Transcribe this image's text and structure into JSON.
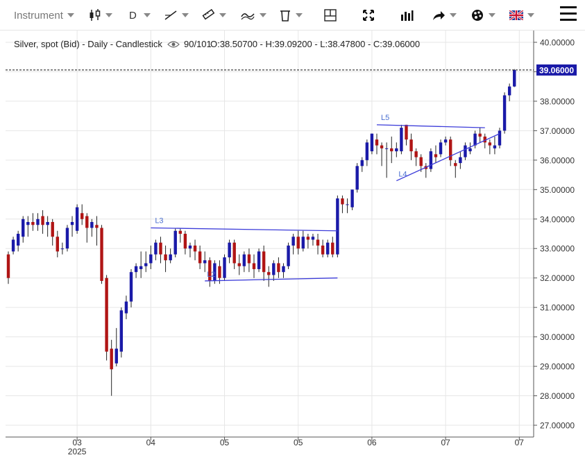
{
  "toolbar": {
    "instrument_label": "Instrument",
    "period_label": "D",
    "icons": [
      "candlestick-icon",
      "draw-line-icon",
      "ruler-icon",
      "indicator-icon",
      "trash-icon",
      "crosshair-box-icon",
      "fullscreen-icon",
      "volume-bars-icon",
      "share-icon",
      "palette-icon",
      "uk-flag-icon",
      "hamburger-menu-icon"
    ]
  },
  "header": {
    "instrument": "Silver, spot (Bid) - Daily - Candlestick",
    "bars": "90/101",
    "ohlc": "O:38.50700 - H:39.09200 - L:38.47800 - C:39.06000"
  },
  "colors": {
    "up": "#1a1aa8",
    "down": "#b01515",
    "drawing": "#3b3bd9",
    "grid": "#e6e6e6",
    "axis_text": "#333333",
    "price_tag_bg": "#1a1aa8"
  },
  "chart_data": {
    "type": "candlestick",
    "title": "Silver, spot (Bid) - Daily - Candlestick",
    "ylim": [
      26.6,
      40.4
    ],
    "y_ticks": [
      "40.00000",
      "39.00000",
      "38.00000",
      "37.00000",
      "36.00000",
      "35.00000",
      "34.00000",
      "33.00000",
      "32.00000",
      "31.00000",
      "30.00000",
      "29.00000",
      "28.00000",
      "27.00000"
    ],
    "x_ticks": [
      {
        "label": "03",
        "sublabel": "2025",
        "index": 14
      },
      {
        "label": "04",
        "sublabel": "",
        "index": 29
      },
      {
        "label": "05",
        "sublabel": "",
        "index": 44
      },
      {
        "label": "05",
        "sublabel": "",
        "index": 59
      },
      {
        "label": "06",
        "sublabel": "",
        "index": 74
      },
      {
        "label": "07",
        "sublabel": "",
        "index": 89
      },
      {
        "label": "07",
        "sublabel": "",
        "index": 104
      }
    ],
    "last_price": {
      "value": 39.06,
      "label": "39.06000"
    },
    "candles": [
      [
        32.8,
        32.0,
        32.9,
        31.8
      ],
      [
        32.9,
        33.3,
        33.4,
        32.8
      ],
      [
        33.1,
        33.5,
        33.6,
        32.9
      ],
      [
        33.4,
        34.0,
        34.1,
        33.2
      ],
      [
        33.8,
        33.9,
        34.1,
        33.4
      ],
      [
        33.9,
        33.8,
        34.2,
        33.6
      ],
      [
        33.8,
        34.0,
        34.2,
        33.6
      ],
      [
        34.1,
        33.8,
        34.3,
        33.5
      ],
      [
        33.8,
        33.9,
        34.1,
        33.4
      ],
      [
        33.9,
        33.4,
        34.0,
        33.1
      ],
      [
        33.4,
        32.9,
        33.6,
        32.7
      ],
      [
        33.0,
        33.0,
        33.2,
        32.8
      ],
      [
        33.0,
        33.7,
        33.8,
        32.9
      ],
      [
        33.8,
        33.9,
        34.1,
        33.4
      ],
      [
        33.6,
        34.4,
        34.5,
        33.5
      ],
      [
        34.2,
        34.0,
        34.5,
        33.8
      ],
      [
        34.1,
        33.7,
        34.2,
        33.2
      ],
      [
        33.7,
        33.9,
        34.0,
        33.4
      ],
      [
        33.8,
        33.7,
        34.1,
        33.1
      ],
      [
        33.7,
        31.9,
        33.8,
        31.8
      ],
      [
        32.0,
        29.5,
        32.1,
        29.2
      ],
      [
        29.6,
        28.9,
        29.9,
        28.0
      ],
      [
        29.1,
        29.6,
        30.3,
        29.0
      ],
      [
        29.5,
        30.9,
        31.0,
        29.3
      ],
      [
        30.8,
        31.2,
        31.4,
        30.6
      ],
      [
        31.2,
        32.2,
        32.3,
        31.0
      ],
      [
        32.2,
        32.4,
        32.5,
        32.0
      ],
      [
        32.3,
        32.4,
        32.9,
        32.0
      ],
      [
        32.4,
        32.5,
        32.9,
        32.2
      ],
      [
        32.5,
        32.8,
        33.1,
        32.3
      ],
      [
        32.8,
        33.2,
        33.3,
        32.6
      ],
      [
        33.2,
        32.8,
        33.4,
        32.5
      ],
      [
        32.8,
        32.6,
        33.1,
        32.2
      ],
      [
        32.6,
        32.8,
        33.0,
        32.5
      ],
      [
        32.8,
        33.6,
        33.7,
        32.7
      ],
      [
        33.6,
        33.5,
        33.7,
        33.2
      ],
      [
        33.5,
        33.0,
        33.6,
        32.8
      ],
      [
        33.0,
        33.1,
        33.2,
        32.7
      ],
      [
        33.1,
        32.9,
        33.3,
        32.6
      ],
      [
        32.9,
        32.5,
        33.1,
        32.3
      ],
      [
        32.5,
        32.6,
        32.9,
        32.2
      ],
      [
        32.6,
        31.9,
        32.7,
        31.7
      ],
      [
        31.9,
        32.5,
        32.6,
        31.8
      ],
      [
        32.4,
        32.0,
        32.6,
        31.8
      ],
      [
        32.0,
        32.7,
        32.8,
        31.9
      ],
      [
        32.7,
        33.2,
        33.3,
        32.5
      ],
      [
        33.2,
        32.5,
        33.3,
        32.3
      ],
      [
        32.5,
        32.4,
        32.8,
        32.1
      ],
      [
        32.4,
        32.8,
        32.9,
        32.2
      ],
      [
        32.8,
        32.5,
        33.0,
        32.2
      ],
      [
        32.5,
        32.3,
        32.8,
        32.0
      ],
      [
        32.3,
        32.9,
        33.0,
        32.2
      ],
      [
        32.9,
        32.2,
        33.1,
        31.9
      ],
      [
        32.2,
        32.1,
        32.4,
        31.7
      ],
      [
        32.1,
        32.5,
        32.6,
        31.9
      ],
      [
        32.5,
        32.2,
        32.7,
        32.0
      ],
      [
        32.2,
        32.4,
        32.5,
        32.0
      ],
      [
        32.4,
        33.1,
        33.2,
        32.3
      ],
      [
        33.1,
        33.4,
        33.5,
        32.8
      ],
      [
        33.4,
        33.0,
        33.6,
        32.8
      ],
      [
        33.0,
        33.4,
        33.6,
        32.9
      ],
      [
        33.4,
        33.3,
        33.5,
        33.0
      ],
      [
        33.3,
        33.4,
        33.5,
        33.1
      ],
      [
        33.3,
        33.1,
        33.5,
        32.8
      ],
      [
        33.1,
        32.8,
        33.3,
        32.7
      ],
      [
        32.8,
        33.2,
        33.3,
        32.7
      ],
      [
        33.2,
        32.8,
        33.4,
        32.7
      ],
      [
        32.8,
        34.7,
        34.8,
        32.7
      ],
      [
        34.7,
        34.5,
        34.8,
        34.2
      ],
      [
        34.5,
        34.5,
        34.7,
        34.2
      ],
      [
        34.4,
        35.0,
        35.0,
        34.3
      ],
      [
        35.0,
        35.8,
        35.9,
        34.9
      ],
      [
        35.8,
        36.0,
        36.1,
        35.6
      ],
      [
        36.0,
        36.6,
        36.7,
        35.8
      ],
      [
        36.3,
        36.9,
        36.9,
        36.2
      ],
      [
        36.7,
        36.5,
        36.9,
        36.2
      ],
      [
        36.5,
        36.4,
        36.6,
        35.8
      ],
      [
        36.4,
        36.4,
        36.6,
        35.4
      ],
      [
        36.4,
        36.3,
        36.8,
        35.9
      ],
      [
        36.3,
        36.4,
        36.6,
        36.1
      ],
      [
        36.3,
        37.1,
        37.2,
        36.2
      ],
      [
        37.2,
        36.7,
        37.2,
        36.5
      ],
      [
        36.7,
        36.3,
        36.9,
        36.0
      ],
      [
        36.3,
        36.1,
        36.4,
        35.8
      ],
      [
        36.1,
        35.8,
        36.2,
        35.6
      ],
      [
        35.8,
        35.7,
        35.9,
        35.4
      ],
      [
        35.7,
        36.3,
        36.4,
        35.6
      ],
      [
        36.2,
        36.1,
        36.5,
        35.9
      ],
      [
        36.2,
        36.6,
        36.7,
        36.1
      ],
      [
        36.6,
        36.7,
        36.8,
        36.5
      ],
      [
        36.7,
        36.0,
        36.8,
        35.8
      ],
      [
        35.9,
        35.8,
        36.0,
        35.4
      ],
      [
        35.9,
        36.1,
        36.3,
        35.7
      ],
      [
        36.1,
        36.5,
        36.6,
        36.0
      ],
      [
        36.3,
        36.4,
        36.6,
        36.2
      ],
      [
        36.5,
        36.9,
        37.0,
        36.4
      ],
      [
        36.9,
        36.8,
        37.1,
        36.6
      ],
      [
        36.8,
        36.6,
        36.9,
        36.4
      ],
      [
        36.6,
        36.5,
        36.7,
        36.2
      ],
      [
        36.4,
        36.5,
        36.8,
        36.2
      ],
      [
        36.5,
        37.0,
        37.1,
        36.4
      ],
      [
        37.0,
        38.2,
        38.3,
        36.9
      ],
      [
        38.2,
        38.5,
        38.6,
        38.0
      ],
      [
        38.5,
        39.06,
        39.09,
        38.48
      ]
    ],
    "drawings": [
      {
        "label": "L3",
        "points": [
          [
            29,
            33.7
          ],
          [
            67,
            33.6
          ]
        ]
      },
      {
        "label": "L2",
        "points": [
          [
            40,
            31.9
          ],
          [
            67,
            32.0
          ]
        ]
      },
      {
        "label": "L5",
        "points": [
          [
            75,
            37.2
          ],
          [
            97,
            37.1
          ]
        ]
      },
      {
        "label": "L4",
        "points": [
          [
            79,
            35.3
          ],
          [
            100,
            36.9
          ]
        ]
      }
    ]
  }
}
